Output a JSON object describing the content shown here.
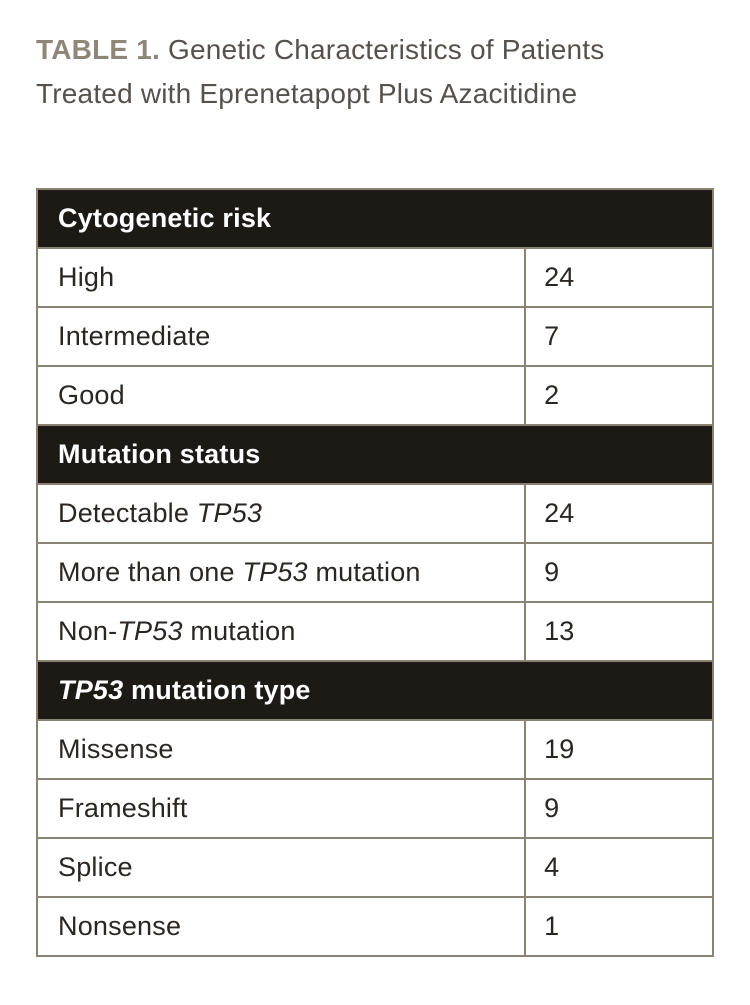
{
  "title": {
    "label": "TABLE 1.",
    "text": " Genetic Characteristics of Patients Treated with Eprenetapopt Plus Azacitidine"
  },
  "colors": {
    "border": "#8a8274",
    "section_bg": "#1d1a15",
    "section_text": "#ffffff",
    "body_text": "#2a2623",
    "title_label": "#8e8678",
    "title_text": "#56514c",
    "page_bg": "#ffffff"
  },
  "table": {
    "rows": [
      {
        "type": "section",
        "segments": [
          {
            "text": "Cytogenetic risk",
            "italic": false
          }
        ]
      },
      {
        "type": "data",
        "segments": [
          {
            "text": "High",
            "italic": false
          }
        ],
        "value": "24"
      },
      {
        "type": "data",
        "segments": [
          {
            "text": "Intermediate",
            "italic": false
          }
        ],
        "value": "7"
      },
      {
        "type": "data",
        "segments": [
          {
            "text": "Good",
            "italic": false
          }
        ],
        "value": "2"
      },
      {
        "type": "section",
        "segments": [
          {
            "text": "Mutation status",
            "italic": false
          }
        ]
      },
      {
        "type": "data",
        "segments": [
          {
            "text": "Detectable ",
            "italic": false
          },
          {
            "text": "TP53",
            "italic": true
          }
        ],
        "value": "24"
      },
      {
        "type": "data",
        "segments": [
          {
            "text": "More than one ",
            "italic": false
          },
          {
            "text": "TP53",
            "italic": true
          },
          {
            "text": " mutation",
            "italic": false
          }
        ],
        "value": "9"
      },
      {
        "type": "data",
        "segments": [
          {
            "text": "Non-",
            "italic": false
          },
          {
            "text": "TP53",
            "italic": true
          },
          {
            "text": " mutation",
            "italic": false
          }
        ],
        "value": "13"
      },
      {
        "type": "section",
        "segments": [
          {
            "text": "TP53",
            "italic": true
          },
          {
            "text": " mutation type",
            "italic": false
          }
        ]
      },
      {
        "type": "data",
        "segments": [
          {
            "text": "Missense",
            "italic": false
          }
        ],
        "value": "19"
      },
      {
        "type": "data",
        "segments": [
          {
            "text": "Frameshift",
            "italic": false
          }
        ],
        "value": "9"
      },
      {
        "type": "data",
        "segments": [
          {
            "text": "Splice",
            "italic": false
          }
        ],
        "value": "4"
      },
      {
        "type": "data",
        "segments": [
          {
            "text": "Nonsense",
            "italic": false
          }
        ],
        "value": "1"
      }
    ]
  }
}
